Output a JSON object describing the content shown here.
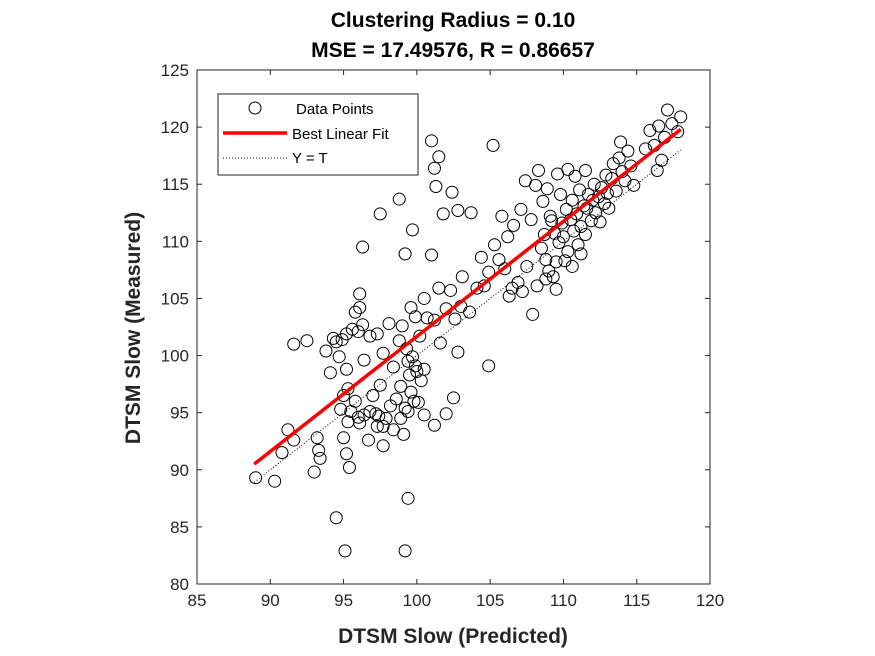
{
  "chart_data": {
    "type": "scatter",
    "title": "Clustering Radius = 0.10",
    "subtitle": "MSE = 17.49576, R = 0.86657",
    "xlabel": "DTSM Slow (Predicted)",
    "ylabel": "DTSM Slow (Measured)",
    "xlim": [
      85,
      120
    ],
    "ylim": [
      80,
      125
    ],
    "xticks": [
      "85",
      "90",
      "95",
      "100",
      "105",
      "110",
      "115",
      "120"
    ],
    "yticks": [
      "80",
      "85",
      "90",
      "95",
      "100",
      "105",
      "110",
      "115",
      "120",
      "125"
    ],
    "grid": false,
    "legend_position": "top-left",
    "series": [
      {
        "name": "Data Points",
        "marker": "open-circle",
        "color": "#000000",
        "points": [
          [
            89,
            89.3
          ],
          [
            90.3,
            89
          ],
          [
            90.8,
            91.5
          ],
          [
            91.2,
            93.5
          ],
          [
            91.6,
            92.6
          ],
          [
            93,
            89.8
          ],
          [
            93.2,
            92.8
          ],
          [
            93.3,
            91.7
          ],
          [
            93.4,
            91
          ],
          [
            95.1,
            82.9
          ],
          [
            99.2,
            82.9
          ],
          [
            94.5,
            85.8
          ],
          [
            95.4,
            90.2
          ],
          [
            99.4,
            87.5
          ],
          [
            91.6,
            101
          ],
          [
            92.5,
            101.3
          ],
          [
            93.8,
            100.4
          ],
          [
            94.3,
            101.5
          ],
          [
            94.5,
            101.2
          ],
          [
            94.9,
            101.4
          ],
          [
            95.2,
            101.9
          ],
          [
            94.1,
            98.5
          ],
          [
            94.7,
            99.9
          ],
          [
            95.2,
            98.8
          ],
          [
            95.6,
            102.3
          ],
          [
            95.8,
            103.8
          ],
          [
            96.1,
            104.2
          ],
          [
            96.1,
            105.4
          ],
          [
            96.3,
            102.7
          ],
          [
            96.0,
            102.1
          ],
          [
            96.4,
            99.6
          ],
          [
            96.8,
            101.7
          ],
          [
            97.3,
            101.9
          ],
          [
            97.5,
            97.4
          ],
          [
            97.7,
            100.2
          ],
          [
            98.1,
            102.8
          ],
          [
            98.4,
            99
          ],
          [
            98.8,
            101.3
          ],
          [
            99.0,
            102.6
          ],
          [
            99.3,
            100.6
          ],
          [
            99.6,
            104.2
          ],
          [
            99.9,
            103.4
          ],
          [
            100.2,
            101.7
          ],
          [
            100.5,
            105
          ],
          [
            94.8,
            95.3
          ],
          [
            95.0,
            96.5
          ],
          [
            95.3,
            97.1
          ],
          [
            95.5,
            95.1
          ],
          [
            95.8,
            96
          ],
          [
            96.1,
            94.1
          ],
          [
            96.4,
            94.8
          ],
          [
            96.8,
            95.1
          ],
          [
            97.0,
            96.5
          ],
          [
            97.2,
            94.9
          ],
          [
            97.4,
            94.7
          ],
          [
            97.7,
            93.8
          ],
          [
            97.9,
            94.5
          ],
          [
            98.2,
            95.6
          ],
          [
            98.6,
            96.2
          ],
          [
            98.9,
            97.3
          ],
          [
            99.2,
            95.4
          ],
          [
            99.4,
            95.1
          ],
          [
            99.6,
            96.8
          ],
          [
            99.8,
            96
          ],
          [
            100.1,
            95.9
          ],
          [
            100.3,
            97.8
          ],
          [
            100.5,
            98.8
          ],
          [
            99.9,
            99.1
          ],
          [
            100.0,
            98.6
          ],
          [
            99.4,
            99.5
          ],
          [
            99.7,
            99.9
          ],
          [
            99.5,
            98.3
          ],
          [
            96.7,
            92.6
          ],
          [
            97.3,
            93.8
          ],
          [
            97.7,
            92.1
          ],
          [
            98.4,
            93.5
          ],
          [
            98.9,
            94.5
          ],
          [
            99.1,
            93.1
          ],
          [
            95.0,
            92.8
          ],
          [
            95.2,
            91.4
          ],
          [
            95.3,
            94.2
          ],
          [
            96.0,
            94.6
          ],
          [
            100.5,
            94.8
          ],
          [
            101.2,
            93.9
          ],
          [
            102.0,
            94.9
          ],
          [
            102.5,
            96.3
          ],
          [
            96.3,
            109.5
          ],
          [
            97.5,
            112.4
          ],
          [
            98.8,
            113.7
          ],
          [
            99.2,
            108.9
          ],
          [
            99.7,
            111
          ],
          [
            101.0,
            108.8
          ],
          [
            101.0,
            118.8
          ],
          [
            101.2,
            116.4
          ],
          [
            101.3,
            114.8
          ],
          [
            101.5,
            117.4
          ],
          [
            101.8,
            112.4
          ],
          [
            102.4,
            114.3
          ],
          [
            102.8,
            112.7
          ],
          [
            103.7,
            112.5
          ],
          [
            100.7,
            103.3
          ],
          [
            101.2,
            103.1
          ],
          [
            101.5,
            105.9
          ],
          [
            101.6,
            101.1
          ],
          [
            102.0,
            104.1
          ],
          [
            102.3,
            105.7
          ],
          [
            102.6,
            103.2
          ],
          [
            103.0,
            104.3
          ],
          [
            103.1,
            106.9
          ],
          [
            103.6,
            103.8
          ],
          [
            104.1,
            105.9
          ],
          [
            104.6,
            106.1
          ],
          [
            104.9,
            99.1
          ],
          [
            102.8,
            100.3
          ],
          [
            104.4,
            108.6
          ],
          [
            104.9,
            107.3
          ],
          [
            105.3,
            109.7
          ],
          [
            105.6,
            108.4
          ],
          [
            106.0,
            107.6
          ],
          [
            106.3,
            105.2
          ],
          [
            106.5,
            105.9
          ],
          [
            106.9,
            106.4
          ],
          [
            107.2,
            105.6
          ],
          [
            107.5,
            107.8
          ],
          [
            107.9,
            103.6
          ],
          [
            108.2,
            106.1
          ],
          [
            106.2,
            110.4
          ],
          [
            105.2,
            118.4
          ],
          [
            105.8,
            112.2
          ],
          [
            106.6,
            111.4
          ],
          [
            107.1,
            112.8
          ],
          [
            107.4,
            115.3
          ],
          [
            107.8,
            111.9
          ],
          [
            108.1,
            114.9
          ],
          [
            108.3,
            116.2
          ],
          [
            108.6,
            113.5
          ],
          [
            108.9,
            114.6
          ],
          [
            109.1,
            112.2
          ],
          [
            109.4,
            110.7
          ],
          [
            108.5,
            109.4
          ],
          [
            108.8,
            108.4
          ],
          [
            109.0,
            107.4
          ],
          [
            109.3,
            106.9
          ],
          [
            109.5,
            108.2
          ],
          [
            109.7,
            109.9
          ],
          [
            109.9,
            111.6
          ],
          [
            110.0,
            110.4
          ],
          [
            110.2,
            112.8
          ],
          [
            110.3,
            109.1
          ],
          [
            110.5,
            111.9
          ],
          [
            110.6,
            113.6
          ],
          [
            110.7,
            110.9
          ],
          [
            110.9,
            112.4
          ],
          [
            111.0,
            109.7
          ],
          [
            111.1,
            114.5
          ],
          [
            111.2,
            111.3
          ],
          [
            111.4,
            113.1
          ],
          [
            111.5,
            110.6
          ],
          [
            111.6,
            112.9
          ],
          [
            111.7,
            114.1
          ],
          [
            111.9,
            111.8
          ],
          [
            112.0,
            113.6
          ],
          [
            112.1,
            115
          ],
          [
            112.2,
            112.5
          ],
          [
            112.4,
            113.9
          ],
          [
            112.5,
            111.7
          ],
          [
            112.6,
            114.7
          ],
          [
            112.8,
            113.3
          ],
          [
            112.9,
            115.8
          ],
          [
            113.0,
            114.2
          ],
          [
            113.1,
            112.9
          ],
          [
            113.3,
            115.5
          ],
          [
            113.4,
            116.8
          ],
          [
            113.6,
            114.4
          ],
          [
            113.8,
            117.3
          ],
          [
            113.9,
            118.7
          ],
          [
            114.0,
            116.1
          ],
          [
            114.2,
            115.3
          ],
          [
            114.4,
            117.9
          ],
          [
            114.6,
            116.6
          ],
          [
            114.8,
            114.9
          ],
          [
            109.6,
            115.9
          ],
          [
            109.8,
            114.1
          ],
          [
            110.3,
            116.3
          ],
          [
            110.8,
            115.7
          ],
          [
            109.2,
            111.8
          ],
          [
            108.7,
            110.6
          ],
          [
            110.1,
            108.3
          ],
          [
            110.6,
            107.8
          ],
          [
            111.2,
            108.9
          ],
          [
            109.5,
            105.8
          ],
          [
            108.8,
            106.7
          ],
          [
            111.5,
            116.2
          ],
          [
            115.9,
            119.7
          ],
          [
            116.2,
            118.4
          ],
          [
            116.5,
            120.1
          ],
          [
            116.7,
            117.1
          ],
          [
            116.9,
            119.1
          ],
          [
            117.1,
            121.5
          ],
          [
            117.4,
            120.3
          ],
          [
            117.8,
            119.6
          ],
          [
            118.0,
            120.9
          ],
          [
            116.4,
            116.2
          ],
          [
            115.6,
            118.1
          ]
        ]
      },
      {
        "name": "Best Linear Fit",
        "marker": "line",
        "color": "#ff0000",
        "points": [
          [
            88.9,
            90.5
          ],
          [
            118,
            119.8
          ]
        ]
      },
      {
        "name": "Y = T",
        "marker": "dotted-line",
        "color": "#000000",
        "points": [
          [
            88.9,
            88.9
          ],
          [
            118,
            118
          ]
        ]
      }
    ]
  }
}
